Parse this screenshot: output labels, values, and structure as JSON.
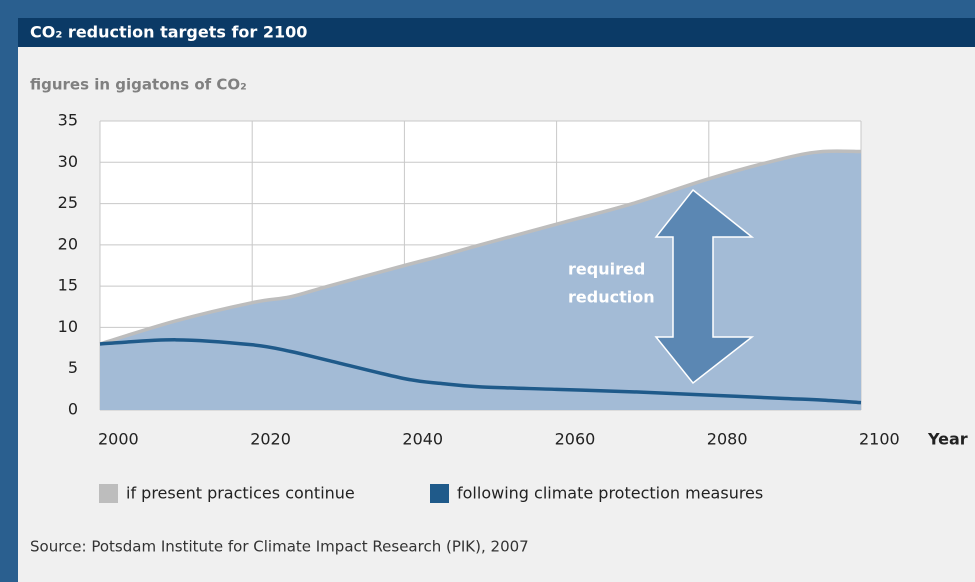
{
  "chart_data": {
    "type": "area_band",
    "title": "CO₂ reduction targets for 2100",
    "subtitle": "figures in gigatons of CO₂",
    "x_label": "Year",
    "source": "Source: Potsdam Institute for Climate Impact Research (PIK), 2007",
    "annotation": [
      "required",
      "reduction"
    ],
    "x": [
      2000,
      2010,
      2020,
      2025,
      2030,
      2040,
      2045,
      2050,
      2060,
      2070,
      2080,
      2090,
      2095,
      2100
    ],
    "series": [
      {
        "name": "if present practices continue",
        "color": "#bdbdbd",
        "values": [
          8,
          10.8,
          13,
          13.7,
          15,
          17.5,
          18.7,
          20,
          22.5,
          25,
          28,
          30.5,
          31.3,
          31.3
        ]
      },
      {
        "name": "following climate protection measures",
        "color": "#1f5a8a",
        "values": [
          8,
          8.5,
          7.9,
          7.1,
          6,
          3.8,
          3.2,
          2.8,
          2.5,
          2.2,
          1.8,
          1.4,
          1.2,
          0.9
        ]
      }
    ],
    "fill_color": "#a3bbd6",
    "xlim": [
      2000,
      2100
    ],
    "xticks": [
      2000,
      2020,
      2040,
      2060,
      2080,
      2100
    ],
    "ylim": [
      0,
      35
    ],
    "yticks": [
      0,
      5,
      10,
      15,
      20,
      25,
      30,
      35
    ],
    "grid": true
  }
}
